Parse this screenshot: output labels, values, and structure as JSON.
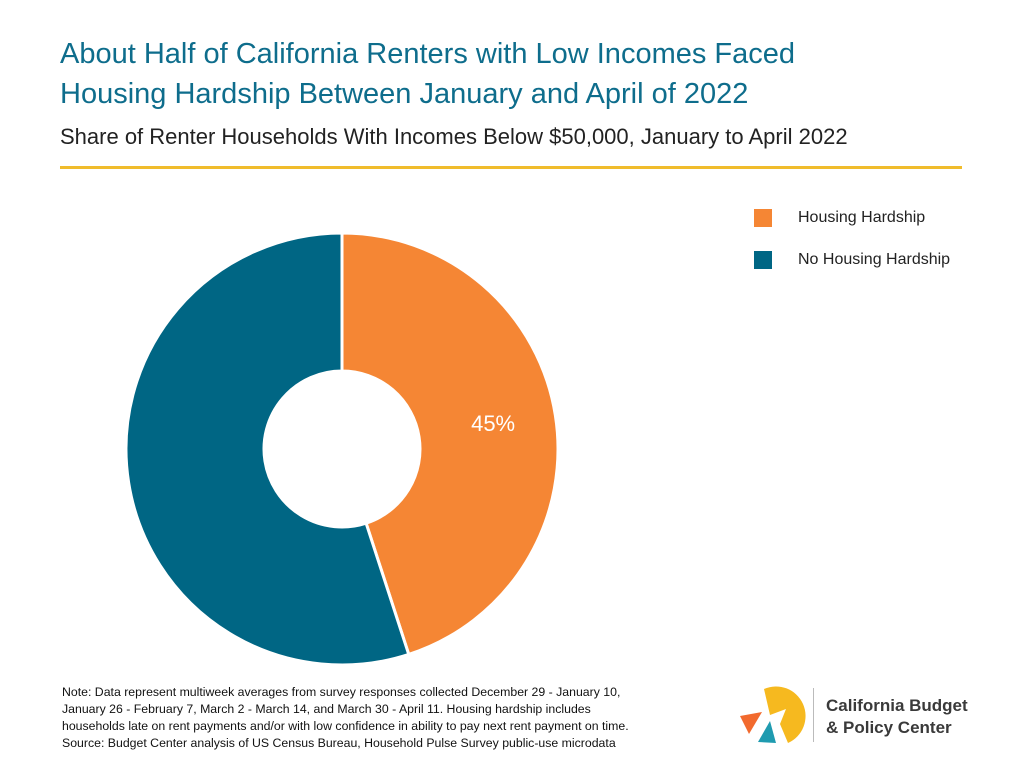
{
  "header": {
    "title_line1": "About Half of California Renters with Low Incomes Faced",
    "title_line2": "Housing Hardship Between January and April of 2022",
    "subtitle": "Share of Renter Households With Incomes Below $50,000, January to April 2022"
  },
  "colors": {
    "title": "#0e6d8c",
    "rule": "#f0bc2c",
    "hardship": "#f58634",
    "no_hardship": "#006684"
  },
  "chart_data": {
    "type": "pie",
    "donut": true,
    "title": "Share of Renter Households With Incomes Below $50,000, January to April 2022",
    "legend_position": "top-right",
    "slices": [
      {
        "label": "Housing Hardship",
        "value": 45,
        "color": "#f58634",
        "data_label": "45%"
      },
      {
        "label": "No Housing Hardship",
        "value": 55,
        "color": "#006684",
        "data_label": ""
      }
    ]
  },
  "footnote": {
    "line1": "Note: Data represent multiweek averages from survey responses collected  December 29 - January 10,",
    "line2": "January 26 - February 7, March 2 - March 14, and March 30 - April 11. Housing hardship includes",
    "line3": "households late on rent payments and/or with low confidence in ability to pay next rent payment on time.",
    "line4": "Source: Budget Center analysis of US Census Bureau, Household Pulse Survey public-use microdata"
  },
  "logo": {
    "line1": "California Budget",
    "line2": "& Policy Center",
    "colors": {
      "yellow": "#f6b91f",
      "orange": "#f26a2e",
      "teal": "#1f9bb0"
    }
  }
}
